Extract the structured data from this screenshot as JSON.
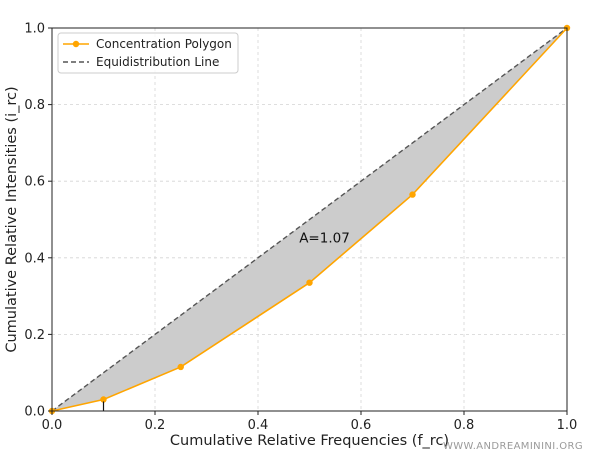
{
  "chart_data": {
    "type": "line",
    "xlabel": "Cumulative Relative Frequencies (f_rc)",
    "ylabel": "Cumulative Relative Intensities (i_rc)",
    "xlim": [
      0,
      1
    ],
    "ylim": [
      0,
      1
    ],
    "xticks": [
      "0.0",
      "0.2",
      "0.4",
      "0.6",
      "0.8",
      "1.0"
    ],
    "yticks": [
      "0.0",
      "0.2",
      "0.4",
      "0.6",
      "0.8",
      "1.0"
    ],
    "grid": true,
    "legend_position": "top-left",
    "series": [
      {
        "name": "Concentration Polygon",
        "style": "solid-with-markers",
        "color": "#FFA500",
        "x": [
          0.0,
          0.1,
          0.25,
          0.5,
          0.7,
          1.0
        ],
        "y": [
          0.0,
          0.03,
          0.115,
          0.335,
          0.565,
          1.0
        ]
      },
      {
        "name": "Equidistribution Line",
        "style": "dashed",
        "color": "#555555",
        "x": [
          0.0,
          1.0
        ],
        "y": [
          0.0,
          1.0
        ]
      }
    ],
    "fill_between": {
      "color": "#cccccc"
    },
    "annotation": {
      "text": "A=1.07",
      "x": 0.48,
      "y": 0.44
    },
    "vertical_marker": {
      "x": 0.1,
      "y": 0.03
    }
  },
  "watermark": "WWW.ANDREAMININI.ORG"
}
